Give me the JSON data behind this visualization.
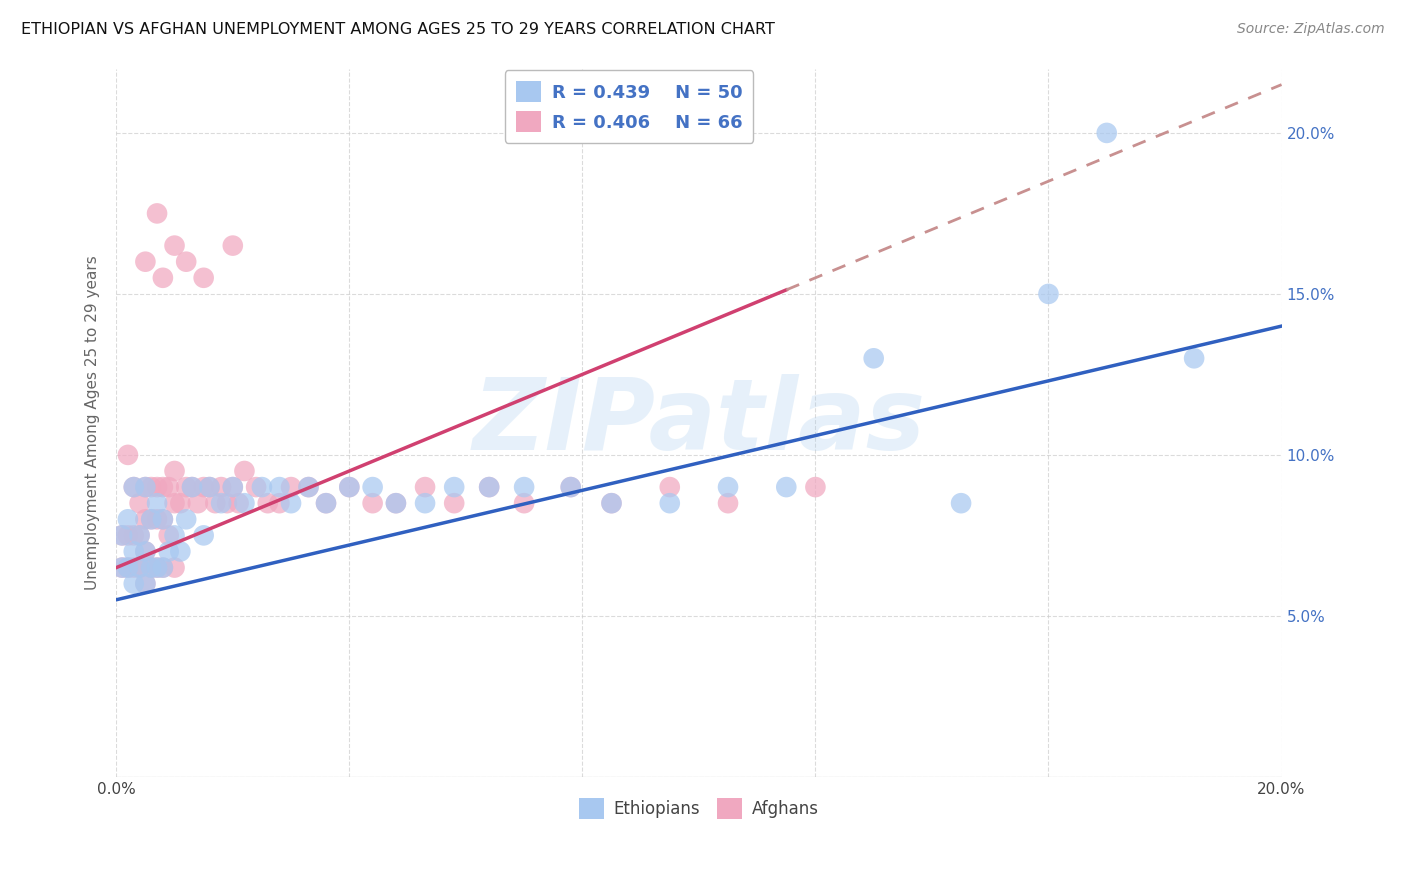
{
  "title": "ETHIOPIAN VS AFGHAN UNEMPLOYMENT AMONG AGES 25 TO 29 YEARS CORRELATION CHART",
  "source_text": "Source: ZipAtlas.com",
  "ylabel": "Unemployment Among Ages 25 to 29 years",
  "xlim": [
    0.0,
    0.2
  ],
  "ylim": [
    0.0,
    0.22
  ],
  "eth_color": "#a8c8f0",
  "afg_color": "#f0a8c0",
  "eth_line_color": "#3060c0",
  "afg_line_color": "#d04070",
  "afg_dash_color": "#c89090",
  "background_color": "#ffffff",
  "grid_color": "#cccccc",
  "watermark": "ZIPatlas",
  "legend_text_color": "#4472c4",
  "eth_x": [
    0.001,
    0.001,
    0.002,
    0.002,
    0.003,
    0.003,
    0.003,
    0.004,
    0.004,
    0.005,
    0.005,
    0.005,
    0.006,
    0.006,
    0.007,
    0.007,
    0.008,
    0.008,
    0.009,
    0.01,
    0.011,
    0.012,
    0.013,
    0.015,
    0.016,
    0.018,
    0.02,
    0.022,
    0.025,
    0.028,
    0.03,
    0.033,
    0.036,
    0.04,
    0.044,
    0.048,
    0.053,
    0.058,
    0.064,
    0.07,
    0.078,
    0.085,
    0.095,
    0.105,
    0.115,
    0.13,
    0.145,
    0.16,
    0.17,
    0.185
  ],
  "eth_y": [
    0.075,
    0.065,
    0.08,
    0.065,
    0.09,
    0.07,
    0.06,
    0.075,
    0.065,
    0.09,
    0.07,
    0.06,
    0.08,
    0.065,
    0.085,
    0.065,
    0.08,
    0.065,
    0.07,
    0.075,
    0.07,
    0.08,
    0.09,
    0.075,
    0.09,
    0.085,
    0.09,
    0.085,
    0.09,
    0.09,
    0.085,
    0.09,
    0.085,
    0.09,
    0.09,
    0.085,
    0.085,
    0.09,
    0.09,
    0.09,
    0.09,
    0.085,
    0.085,
    0.09,
    0.09,
    0.13,
    0.085,
    0.15,
    0.2,
    0.13
  ],
  "afg_x": [
    0.001,
    0.001,
    0.002,
    0.002,
    0.002,
    0.003,
    0.003,
    0.003,
    0.004,
    0.004,
    0.004,
    0.005,
    0.005,
    0.005,
    0.005,
    0.006,
    0.006,
    0.006,
    0.007,
    0.007,
    0.007,
    0.008,
    0.008,
    0.008,
    0.009,
    0.009,
    0.01,
    0.01,
    0.01,
    0.011,
    0.012,
    0.013,
    0.014,
    0.015,
    0.016,
    0.017,
    0.018,
    0.019,
    0.02,
    0.021,
    0.022,
    0.024,
    0.026,
    0.028,
    0.03,
    0.033,
    0.036,
    0.04,
    0.044,
    0.048,
    0.053,
    0.058,
    0.064,
    0.07,
    0.078,
    0.085,
    0.095,
    0.105,
    0.12,
    0.01,
    0.005,
    0.007,
    0.008,
    0.012,
    0.015,
    0.02
  ],
  "afg_y": [
    0.075,
    0.065,
    0.1,
    0.075,
    0.065,
    0.09,
    0.075,
    0.065,
    0.085,
    0.075,
    0.065,
    0.09,
    0.08,
    0.07,
    0.06,
    0.09,
    0.08,
    0.065,
    0.09,
    0.08,
    0.065,
    0.09,
    0.08,
    0.065,
    0.09,
    0.075,
    0.095,
    0.085,
    0.065,
    0.085,
    0.09,
    0.09,
    0.085,
    0.09,
    0.09,
    0.085,
    0.09,
    0.085,
    0.09,
    0.085,
    0.095,
    0.09,
    0.085,
    0.085,
    0.09,
    0.09,
    0.085,
    0.09,
    0.085,
    0.085,
    0.09,
    0.085,
    0.09,
    0.085,
    0.09,
    0.085,
    0.09,
    0.085,
    0.09,
    0.165,
    0.16,
    0.175,
    0.155,
    0.16,
    0.155,
    0.165
  ]
}
